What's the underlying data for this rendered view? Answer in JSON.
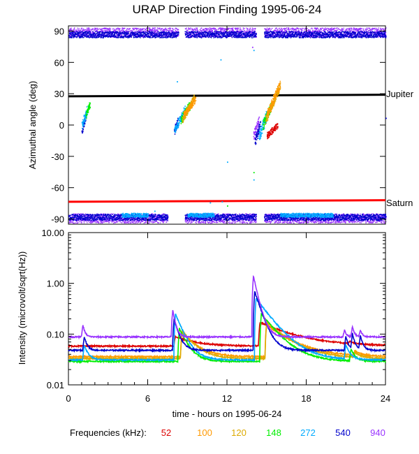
{
  "chart_data": [
    {
      "type": "scatter",
      "title": "URAP Direction Finding  1995-06-24",
      "xlabel": "",
      "ylabel": "Azimuthal angle (deg)",
      "xlim": [
        0,
        24
      ],
      "ylim": [
        -95,
        95
      ],
      "yticks": [
        {
          "value": 90,
          "label": "90"
        },
        {
          "value": 60,
          "label": "60"
        },
        {
          "value": 30,
          "label": "30"
        },
        {
          "value": 0,
          "label": "0"
        },
        {
          "value": -30,
          "label": "-30"
        },
        {
          "value": -60,
          "label": "-60"
        },
        {
          "value": -90,
          "label": "-90"
        }
      ],
      "reference_lines": [
        {
          "name": "Jupiter",
          "color": "#000000",
          "points": [
            [
              0,
              27.5
            ],
            [
              12,
              28.2
            ],
            [
              24,
              29
            ]
          ]
        },
        {
          "name": "Saturn",
          "color": "#ff0000",
          "points": [
            [
              0,
              -73.5
            ],
            [
              12,
              -72.8
            ],
            [
              24,
              -72
            ]
          ]
        }
      ],
      "bands": [
        {
          "freq": "940",
          "color": "#9933ff",
          "center": 89,
          "spread": 4.5,
          "ranges": [
            [
              0,
              8.3
            ],
            [
              8.8,
              14.2
            ],
            [
              14.8,
              24
            ]
          ]
        },
        {
          "freq": "540",
          "color": "#0000cc",
          "center": 87,
          "spread": 3,
          "ranges": [
            [
              0,
              8.3
            ],
            [
              8.8,
              14.2
            ],
            [
              14.8,
              24
            ]
          ]
        },
        {
          "freq": "940",
          "color": "#9933ff",
          "center": -89,
          "spread": 4.5,
          "ranges": [
            [
              0,
              7.5
            ],
            [
              8.8,
              14.2
            ],
            [
              14.8,
              24
            ]
          ]
        },
        {
          "freq": "540",
          "color": "#0000cc",
          "center": -88,
          "spread": 3,
          "ranges": [
            [
              0,
              7.5
            ],
            [
              8.8,
              14.2
            ],
            [
              14.8,
              24
            ]
          ]
        },
        {
          "freq": "272",
          "color": "#00aaff",
          "center": -86,
          "spread": 2,
          "ranges": [
            [
              4,
              6
            ],
            [
              9,
              11
            ],
            [
              16,
              20
            ]
          ]
        }
      ],
      "clusters": [
        {
          "freq": "540",
          "color": "#0000cc",
          "t0": 1.0,
          "t1": 1.3,
          "a0": -5,
          "a1": 10,
          "jitter": 4
        },
        {
          "freq": "272",
          "color": "#00aaff",
          "t0": 1.0,
          "t1": 1.4,
          "a0": 0,
          "a1": 15,
          "jitter": 4
        },
        {
          "freq": "148",
          "color": "#00ee00",
          "t0": 1.3,
          "t1": 1.6,
          "a0": 10,
          "a1": 20,
          "jitter": 3
        },
        {
          "freq": "540",
          "color": "#0000cc",
          "t0": 8.0,
          "t1": 8.3,
          "a0": -5,
          "a1": 5,
          "jitter": 4
        },
        {
          "freq": "272",
          "color": "#00aaff",
          "t0": 8.0,
          "t1": 8.8,
          "a0": -5,
          "a1": 15,
          "jitter": 4
        },
        {
          "freq": "148",
          "color": "#00ee00",
          "t0": 8.5,
          "t1": 9.2,
          "a0": 5,
          "a1": 20,
          "jitter": 4
        },
        {
          "freq": "120",
          "color": "#ddaa00",
          "t0": 8.6,
          "t1": 9.5,
          "a0": 5,
          "a1": 27,
          "jitter": 3
        },
        {
          "freq": "100",
          "color": "#ff9900",
          "t0": 8.7,
          "t1": 9.6,
          "a0": 10,
          "a1": 25,
          "jitter": 3
        },
        {
          "freq": "940",
          "color": "#9933ff",
          "t0": 14.0,
          "t1": 14.4,
          "a0": -10,
          "a1": 5,
          "jitter": 4
        },
        {
          "freq": "540",
          "color": "#0000cc",
          "t0": 14.1,
          "t1": 14.5,
          "a0": -15,
          "a1": 0,
          "jitter": 5
        },
        {
          "freq": "272",
          "color": "#00aaff",
          "t0": 14.4,
          "t1": 15.0,
          "a0": -10,
          "a1": 10,
          "jitter": 5
        },
        {
          "freq": "148",
          "color": "#00ee00",
          "t0": 14.7,
          "t1": 15.3,
          "a0": 0,
          "a1": 18,
          "jitter": 4
        },
        {
          "freq": "120",
          "color": "#ddaa00",
          "t0": 14.9,
          "t1": 16.0,
          "a0": 5,
          "a1": 38,
          "jitter": 4
        },
        {
          "freq": "100",
          "color": "#ff9900",
          "t0": 15.0,
          "t1": 16.0,
          "a0": 10,
          "a1": 40,
          "jitter": 4
        },
        {
          "freq": "52",
          "color": "#dd0000",
          "t0": 15.0,
          "t1": 15.8,
          "a0": -10,
          "a1": 0,
          "jitter": 3
        }
      ],
      "scattered_points": [
        {
          "color": "#00aaff",
          "t": 12.0,
          "a": -35
        },
        {
          "color": "#00aaff",
          "t": 10.7,
          "a": -74
        },
        {
          "color": "#00aaff",
          "t": 11.6,
          "a": -73
        },
        {
          "color": "#00aaff",
          "t": 11.5,
          "a": 63
        },
        {
          "color": "#00aaff",
          "t": 6.5,
          "a": -82
        },
        {
          "color": "#00aaff",
          "t": 8.2,
          "a": 42
        },
        {
          "color": "#00ee00",
          "t": 12.0,
          "a": -77
        },
        {
          "color": "#00ee00",
          "t": 14.0,
          "a": -45
        },
        {
          "color": "#00aaff",
          "t": 14.0,
          "a": -52
        },
        {
          "color": "#00aaff",
          "t": 14.0,
          "a": 72
        },
        {
          "color": "#0000cc",
          "t": 24.0,
          "a": 7
        },
        {
          "color": "#9933ff",
          "t": 13.9,
          "a": 75
        }
      ]
    },
    {
      "type": "line",
      "title": "",
      "xlabel": "time - hours on 1995-06-24",
      "ylabel": "Intensity (microvolt/sqrt(Hz))",
      "xlim": [
        0,
        24
      ],
      "ylim": [
        0.01,
        10
      ],
      "yscale": "log",
      "xticks": [
        {
          "value": 0,
          "label": "0"
        },
        {
          "value": 6,
          "label": "6"
        },
        {
          "value": 12,
          "label": "12"
        },
        {
          "value": 18,
          "label": "18"
        },
        {
          "value": 24,
          "label": "24"
        }
      ],
      "yticks": [
        {
          "value": 10,
          "label": "10.00"
        },
        {
          "value": 1,
          "label": "1.00"
        },
        {
          "value": 0.1,
          "label": "0.10"
        },
        {
          "value": 0.01,
          "label": "0.01"
        }
      ],
      "series": [
        {
          "name": "52",
          "color": "#dd0000",
          "baseline": 0.058,
          "events": [
            {
              "t0": 8.1,
              "peak": 0.09,
              "tau": 1.5
            },
            {
              "t0": 14.5,
              "peak": 0.17,
              "tau": 2.5
            },
            {
              "t0": 21.3,
              "peak": 0.065,
              "tau": 0.3
            }
          ]
        },
        {
          "name": "100",
          "color": "#ff9900",
          "baseline": 0.036,
          "events": [
            {
              "t0": 8.6,
              "peak": 0.11,
              "tau": 1.0
            },
            {
              "t0": 15.0,
              "peak": 0.15,
              "tau": 1.8
            },
            {
              "t0": 21.7,
              "peak": 0.045,
              "tau": 0.4
            }
          ]
        },
        {
          "name": "120",
          "color": "#ddaa00",
          "baseline": 0.033,
          "events": [
            {
              "t0": 8.6,
              "peak": 0.12,
              "tau": 0.9
            },
            {
              "t0": 15.0,
              "peak": 0.17,
              "tau": 1.6
            },
            {
              "t0": 21.7,
              "peak": 0.042,
              "tau": 0.4
            }
          ]
        },
        {
          "name": "148",
          "color": "#00ee00",
          "baseline": 0.029,
          "events": [
            {
              "t0": 8.4,
              "peak": 0.13,
              "tau": 0.6
            },
            {
              "t0": 14.6,
              "peak": 0.25,
              "tau": 1.2
            },
            {
              "t0": 21.4,
              "peak": 0.05,
              "tau": 0.3
            }
          ]
        },
        {
          "name": "272",
          "color": "#00aaff",
          "baseline": 0.031,
          "events": [
            {
              "t0": 1.2,
              "peak": 0.06,
              "tau": 0.3
            },
            {
              "t0": 8.1,
              "peak": 0.25,
              "tau": 0.6
            },
            {
              "t0": 14.2,
              "peak": 0.5,
              "tau": 1.2
            },
            {
              "t0": 21.0,
              "peak": 0.06,
              "tau": 0.3
            }
          ]
        },
        {
          "name": "540",
          "color": "#0000cc",
          "baseline": 0.048,
          "events": [
            {
              "t0": 1.2,
              "peak": 0.09,
              "tau": 0.2
            },
            {
              "t0": 8.0,
              "peak": 0.2,
              "tau": 0.35
            },
            {
              "t0": 14.1,
              "peak": 0.7,
              "tau": 0.5
            },
            {
              "t0": 21.0,
              "peak": 0.09,
              "tau": 0.2
            },
            {
              "t0": 21.5,
              "peak": 0.1,
              "tau": 0.2
            },
            {
              "t0": 22.1,
              "peak": 0.09,
              "tau": 0.2
            }
          ]
        },
        {
          "name": "940",
          "color": "#9933ff",
          "baseline": 0.088,
          "events": [
            {
              "t0": 1.1,
              "peak": 0.15,
              "tau": 0.15
            },
            {
              "t0": 7.9,
              "peak": 0.3,
              "tau": 0.2
            },
            {
              "t0": 14.0,
              "peak": 1.4,
              "tau": 0.35
            },
            {
              "t0": 20.9,
              "peak": 0.12,
              "tau": 0.15
            },
            {
              "t0": 21.5,
              "peak": 0.14,
              "tau": 0.15
            },
            {
              "t0": 22.1,
              "peak": 0.12,
              "tau": 0.15
            }
          ]
        }
      ]
    }
  ],
  "legend": {
    "title": "Frequencies (kHz):",
    "items": [
      {
        "label": "52",
        "color": "#dd0000"
      },
      {
        "label": "100",
        "color": "#ff9900"
      },
      {
        "label": "120",
        "color": "#ddaa00"
      },
      {
        "label": "148",
        "color": "#00ee00"
      },
      {
        "label": "272",
        "color": "#00aaff"
      },
      {
        "label": "540",
        "color": "#0000cc"
      },
      {
        "label": "940",
        "color": "#9933ff"
      }
    ]
  }
}
